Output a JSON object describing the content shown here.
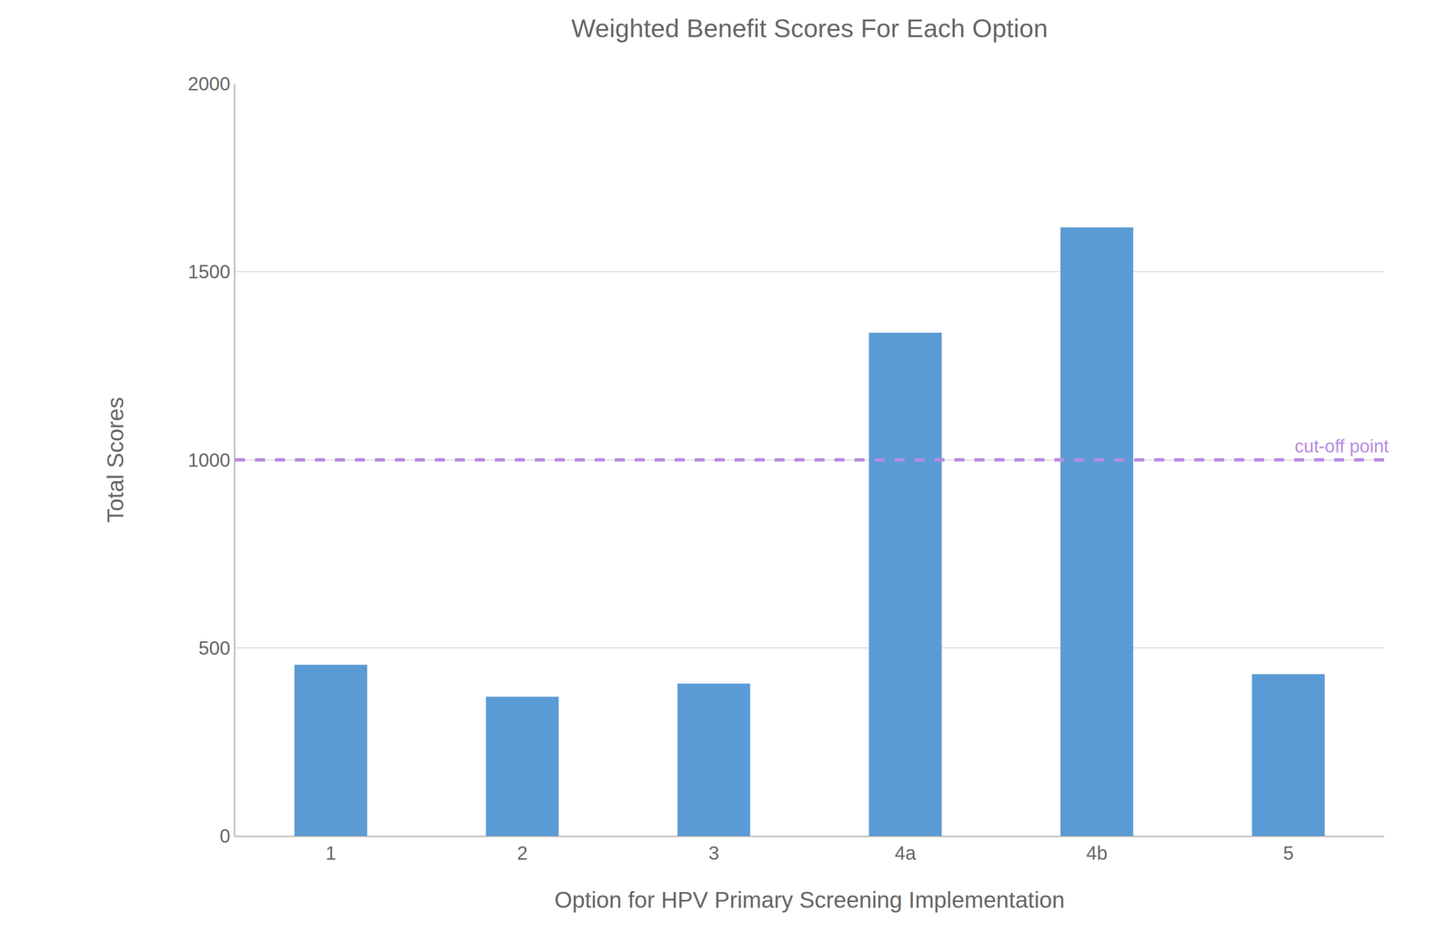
{
  "chart_data": {
    "type": "bar",
    "title": "Weighted Benefit Scores For Each Option",
    "x_label": "Option for HPV Primary Screening Implementation",
    "y_label": "Total Scores",
    "categories": [
      "1",
      "2",
      "3",
      "4a",
      "4b",
      "5"
    ],
    "values": [
      455,
      370,
      405,
      1338,
      1618,
      430
    ],
    "color": "#5b9bd5",
    "ylim": [
      0,
      2000
    ],
    "yticks": [
      0,
      500,
      1000,
      1500,
      2000
    ],
    "grid": true,
    "annotations": [
      {
        "text": "cut-off point",
        "y": 1000,
        "color": "#b78be0",
        "line_style": "dash"
      }
    ]
  }
}
